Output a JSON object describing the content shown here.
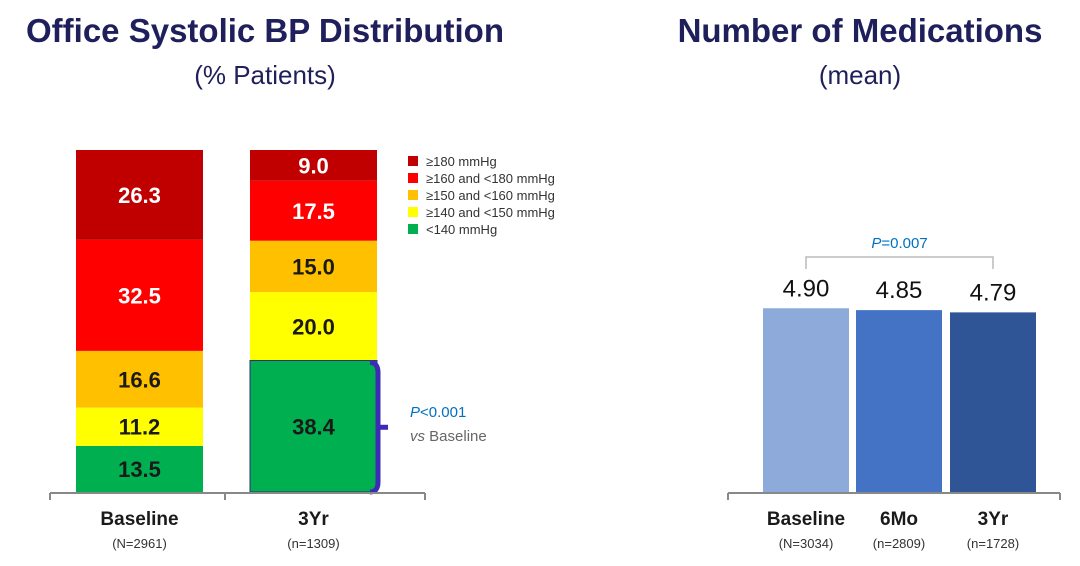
{
  "left": {
    "title": "Office Systolic BP Distribution",
    "subtitle": "(% Patients)"
  },
  "right": {
    "title": "Number of Medications",
    "subtitle": "(mean)"
  },
  "chart_data": [
    {
      "type": "bar",
      "stacked": true,
      "title": "Office Systolic BP Distribution",
      "subtitle": "(% Patients)",
      "categories": [
        "Baseline",
        "3Yr"
      ],
      "category_notes": [
        "(N=2961)",
        "(n=1309)"
      ],
      "series": [
        {
          "name": "<140 mmHg",
          "color": "#00b050",
          "values": [
            13.5,
            38.4
          ]
        },
        {
          "name": "≥140 and <150 mmHg",
          "color": "#ffff00",
          "values": [
            11.2,
            20.0
          ]
        },
        {
          "name": "≥150 and <160 mmHg",
          "color": "#ffc000",
          "values": [
            16.6,
            15.0
          ]
        },
        {
          "name": "≥160 and <180 mmHg",
          "color": "#ff0000",
          "values": [
            32.5,
            17.5
          ]
        },
        {
          "name": "≥180 mmHg",
          "color": "#c00000",
          "values": [
            26.3,
            9.0
          ]
        }
      ],
      "label_colors": [
        "#1a1a1a",
        "#1a1a1a",
        "#1a1a1a",
        "#ffffff",
        "#ffffff"
      ],
      "legend_position": "right",
      "annotation": {
        "p_symbol": "P",
        "p_value": "<0.001",
        "vs_word": "vs",
        "vs_rest": " Baseline"
      }
    },
    {
      "type": "bar",
      "title": "Number of Medications",
      "subtitle": "(mean)",
      "categories": [
        "Baseline",
        "6Mo",
        "3Yr"
      ],
      "category_notes": [
        "(N=3034)",
        "(n=2809)",
        "(n=1728)"
      ],
      "values": [
        4.9,
        4.85,
        4.79
      ],
      "value_labels": [
        "4.90",
        "4.85",
        "4.79"
      ],
      "colors": [
        "#8eaadb",
        "#4472c4",
        "#2f5597"
      ],
      "annotation": {
        "p_symbol": "P",
        "p_value": "=0.007",
        "between": [
          "Baseline",
          "3Yr"
        ]
      }
    }
  ],
  "colors": {
    "title": "#1f1f5c",
    "annotation_blue": "#0070c0",
    "bracket": "#3d2bb5",
    "axis": "#888888"
  }
}
